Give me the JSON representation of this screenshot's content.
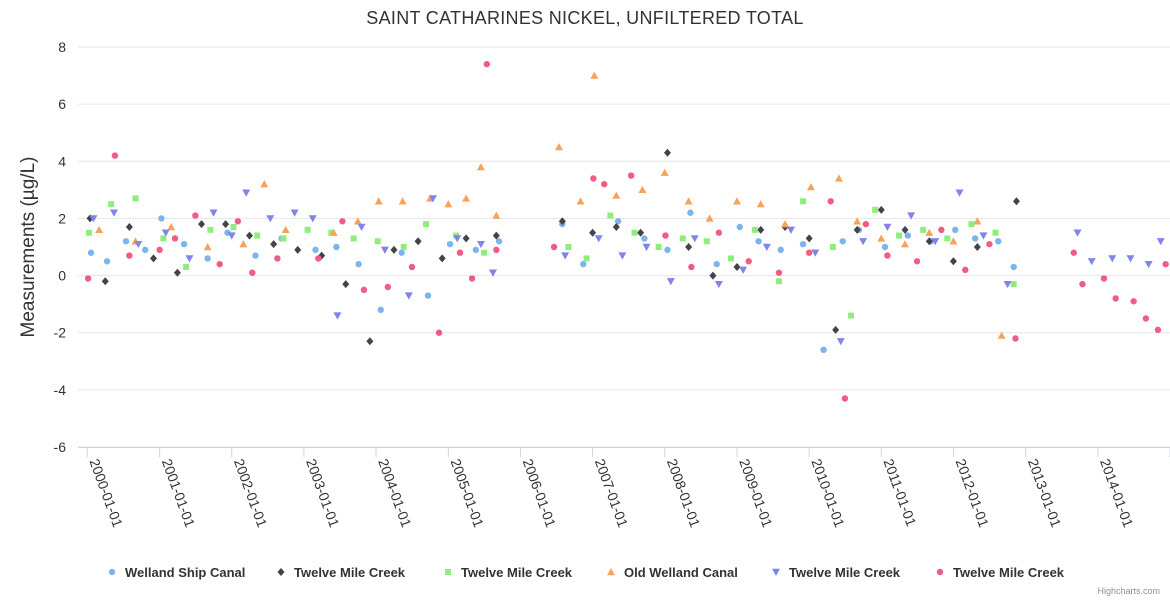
{
  "chart_data": {
    "type": "scatter",
    "title": "SAINT CATHARINES NICKEL, UNFILTERED TOTAL",
    "xlabel": "",
    "ylabel": "Measurements (µg/L)",
    "xlim": [
      "1999-11-15",
      "2015-01-01"
    ],
    "ylim": [
      -6,
      8
    ],
    "y_ticks": [
      8,
      6,
      4,
      2,
      0,
      -2,
      -4,
      -6
    ],
    "x_ticks": [
      "2000-01-01",
      "2001-01-01",
      "2002-01-01",
      "2003-01-01",
      "2004-01-01",
      "2005-01-01",
      "2006-01-01",
      "2007-01-01",
      "2008-01-01",
      "2009-01-01",
      "2010-01-01",
      "2011-01-01",
      "2012-01-01",
      "2013-01-01",
      "2014-01-01",
      "2015-01-01"
    ],
    "grid": "horizontal",
    "legend_position": "bottom",
    "credits": "Highcharts.com",
    "series": [
      {
        "name": "Welland Ship Canal",
        "marker": "circle",
        "color": "#7cb5ec",
        "x": [
          "2000-01-20",
          "2000-04-10",
          "2000-07-15",
          "2000-10-20",
          "2001-01-10",
          "2001-05-05",
          "2001-09-01",
          "2001-12-10",
          "2002-05-01",
          "2002-09-10",
          "2003-03-01",
          "2003-06-15",
          "2003-10-05",
          "2004-01-25",
          "2004-05-10",
          "2004-09-20",
          "2005-01-10",
          "2005-05-20",
          "2005-09-15",
          "2006-08-01",
          "2006-11-15",
          "2007-05-10",
          "2007-09-20",
          "2008-01-15",
          "2008-05-10",
          "2008-09-20",
          "2009-01-15",
          "2009-04-20",
          "2009-08-10",
          "2009-12-01",
          "2010-03-15",
          "2010-06-20",
          "2010-09-10",
          "2011-01-20",
          "2011-05-15",
          "2011-09-10",
          "2012-01-10",
          "2012-04-20",
          "2012-08-15",
          "2012-11-01"
        ],
        "y": [
          0.8,
          0.5,
          1.2,
          0.9,
          2.0,
          1.1,
          0.6,
          1.5,
          0.7,
          1.3,
          0.9,
          1.0,
          0.4,
          -1.2,
          0.8,
          -0.7,
          1.1,
          0.9,
          1.2,
          1.8,
          0.4,
          1.9,
          1.3,
          0.9,
          2.2,
          0.4,
          1.7,
          1.2,
          0.9,
          1.1,
          -2.6,
          1.2,
          1.6,
          1.0,
          1.4,
          1.2,
          1.6,
          1.3,
          1.2,
          0.3
        ]
      },
      {
        "name": "Twelve Mile Creek",
        "marker": "diamond",
        "color": "#434348",
        "x": [
          "2000-01-15",
          "2000-04-01",
          "2000-08-01",
          "2000-12-01",
          "2001-04-01",
          "2001-08-01",
          "2001-12-01",
          "2002-04-01",
          "2002-08-01",
          "2002-12-01",
          "2003-04-01",
          "2003-08-01",
          "2003-12-01",
          "2004-04-01",
          "2004-08-01",
          "2004-12-01",
          "2005-04-01",
          "2005-09-01",
          "2006-08-01",
          "2007-01-01",
          "2007-05-01",
          "2007-09-01",
          "2008-01-15",
          "2008-05-01",
          "2008-09-01",
          "2009-01-01",
          "2009-05-01",
          "2009-09-01",
          "2010-01-01",
          "2010-05-15",
          "2010-09-01",
          "2011-01-01",
          "2011-05-01",
          "2011-09-01",
          "2012-01-01",
          "2012-05-01",
          "2012-11-15"
        ],
        "y": [
          2.0,
          -0.2,
          1.7,
          0.6,
          0.1,
          1.8,
          1.8,
          1.4,
          1.1,
          0.9,
          0.7,
          -0.3,
          -2.3,
          0.9,
          1.2,
          0.6,
          1.3,
          1.4,
          1.9,
          1.5,
          1.7,
          1.5,
          4.3,
          1.0,
          0.0,
          0.3,
          1.6,
          1.7,
          1.3,
          -1.9,
          1.6,
          2.3,
          1.6,
          1.2,
          0.5,
          1.0,
          2.6
        ]
      },
      {
        "name": "Twelve Mile Creek",
        "marker": "square",
        "color": "#90ed7d",
        "x": [
          "2000-01-10",
          "2000-05-01",
          "2000-09-01",
          "2001-01-20",
          "2001-05-15",
          "2001-09-15",
          "2002-01-10",
          "2002-05-10",
          "2002-09-20",
          "2003-01-20",
          "2003-05-20",
          "2003-09-10",
          "2004-01-10",
          "2004-05-20",
          "2004-09-10",
          "2005-02-10",
          "2005-07-01",
          "2006-09-01",
          "2006-12-01",
          "2007-04-01",
          "2007-08-01",
          "2007-12-01",
          "2008-04-01",
          "2008-08-01",
          "2008-12-01",
          "2009-04-01",
          "2009-08-01",
          "2009-12-01",
          "2010-05-01",
          "2010-08-01",
          "2010-12-01",
          "2011-04-01",
          "2011-08-01",
          "2011-12-01",
          "2012-04-01",
          "2012-08-01",
          "2012-11-01"
        ],
        "y": [
          1.5,
          2.5,
          2.7,
          1.3,
          0.3,
          1.6,
          1.7,
          1.4,
          1.3,
          1.6,
          1.5,
          1.3,
          1.2,
          1.0,
          1.8,
          1.4,
          0.8,
          1.0,
          0.6,
          2.1,
          1.5,
          1.0,
          1.3,
          1.2,
          0.6,
          1.6,
          -0.2,
          2.6,
          1.0,
          -1.4,
          2.3,
          1.4,
          1.6,
          1.3,
          1.8,
          1.5,
          -0.3
        ]
      },
      {
        "name": "Old Welland Canal",
        "marker": "triangle",
        "color": "#f7a35c",
        "x": [
          "2000-03-01",
          "2000-09-01",
          "2001-03-01",
          "2001-09-01",
          "2002-03-01",
          "2002-06-15",
          "2002-10-01",
          "2003-06-01",
          "2003-10-01",
          "2004-01-15",
          "2004-05-15",
          "2004-10-01",
          "2005-01-01",
          "2005-04-01",
          "2005-06-15",
          "2005-09-01",
          "2006-07-15",
          "2006-11-01",
          "2007-01-10",
          "2007-05-01",
          "2007-09-10",
          "2008-01-01",
          "2008-05-01",
          "2008-08-15",
          "2009-01-01",
          "2009-05-01",
          "2009-09-01",
          "2010-01-10",
          "2010-06-01",
          "2010-09-01",
          "2011-01-01",
          "2011-05-01",
          "2011-09-01",
          "2012-01-01",
          "2012-05-01",
          "2012-09-01"
        ],
        "y": [
          1.6,
          1.2,
          1.7,
          1.0,
          1.1,
          3.2,
          1.6,
          1.5,
          1.9,
          2.6,
          2.6,
          2.7,
          2.5,
          2.7,
          3.8,
          2.1,
          4.5,
          2.6,
          7.0,
          2.8,
          3.0,
          3.6,
          2.6,
          2.0,
          2.6,
          2.5,
          1.8,
          3.1,
          3.4,
          1.9,
          1.3,
          1.1,
          1.5,
          1.2,
          1.9,
          -2.1
        ]
      },
      {
        "name": "Twelve Mile Creek",
        "marker": "triangle-down",
        "color": "#8085e9",
        "x": [
          "2000-02-01",
          "2000-05-15",
          "2000-09-15",
          "2001-02-01",
          "2001-06-01",
          "2001-10-01",
          "2002-01-01",
          "2002-03-15",
          "2002-07-15",
          "2002-11-15",
          "2003-02-15",
          "2003-06-20",
          "2003-10-20",
          "2004-02-15",
          "2004-06-15",
          "2004-10-15",
          "2005-02-15",
          "2005-06-15",
          "2005-08-15",
          "2006-08-15",
          "2007-02-01",
          "2007-06-01",
          "2007-10-01",
          "2008-02-01",
          "2008-06-01",
          "2008-10-01",
          "2009-02-01",
          "2009-06-01",
          "2009-10-01",
          "2010-02-01",
          "2010-06-10",
          "2010-10-01",
          "2011-02-01",
          "2011-06-01",
          "2011-10-01",
          "2012-02-01",
          "2012-06-01",
          "2012-10-01",
          "2013-09-20",
          "2013-12-01",
          "2014-03-15",
          "2014-06-15",
          "2014-09-15",
          "2014-11-15"
        ],
        "y": [
          2.0,
          2.2,
          1.1,
          1.5,
          0.6,
          2.2,
          1.4,
          2.9,
          2.0,
          2.2,
          2.0,
          -1.4,
          1.7,
          0.9,
          -0.7,
          2.7,
          1.3,
          1.1,
          0.1,
          0.7,
          1.3,
          0.7,
          1.0,
          -0.2,
          1.3,
          -0.3,
          0.2,
          1.0,
          1.6,
          0.8,
          -2.3,
          1.2,
          1.7,
          2.1,
          1.2,
          2.9,
          1.4,
          -0.3,
          1.5,
          0.5,
          0.6,
          0.6,
          0.4,
          1.2
        ]
      },
      {
        "name": "Twelve Mile Creek",
        "marker": "circle",
        "color": "#f15c80",
        "x": [
          "2000-01-05",
          "2000-05-20",
          "2000-08-01",
          "2001-01-01",
          "2001-03-20",
          "2001-07-01",
          "2001-11-01",
          "2002-02-01",
          "2002-04-15",
          "2002-08-20",
          "2003-03-15",
          "2003-07-15",
          "2003-11-01",
          "2004-03-01",
          "2004-07-01",
          "2004-11-15",
          "2005-03-01",
          "2005-05-01",
          "2005-07-15",
          "2005-09-01",
          "2006-06-20",
          "2007-01-05",
          "2007-03-01",
          "2007-07-15",
          "2008-01-05",
          "2008-05-15",
          "2008-10-01",
          "2009-03-01",
          "2009-08-01",
          "2010-01-01",
          "2010-04-20",
          "2010-07-01",
          "2010-10-15",
          "2011-02-01",
          "2011-07-01",
          "2011-11-01",
          "2012-03-01",
          "2012-07-01",
          "2012-11-10",
          "2013-09-01",
          "2013-10-15",
          "2014-02-01",
          "2014-04-01",
          "2014-07-01",
          "2014-09-01",
          "2014-11-01",
          "2014-12-10"
        ],
        "y": [
          -0.1,
          4.2,
          0.7,
          0.9,
          1.3,
          2.1,
          0.4,
          1.9,
          0.1,
          0.6,
          0.6,
          1.9,
          -0.5,
          -0.4,
          0.3,
          -2.0,
          0.8,
          -0.1,
          7.4,
          0.9,
          1.0,
          3.4,
          3.2,
          3.5,
          1.4,
          0.3,
          1.5,
          0.5,
          0.1,
          0.8,
          2.6,
          -4.3,
          1.8,
          0.7,
          0.5,
          1.6,
          0.2,
          1.1,
          -2.2,
          0.8,
          -0.3,
          -0.1,
          -0.8,
          -0.9,
          -1.5,
          -1.9,
          0.4
        ]
      }
    ]
  }
}
